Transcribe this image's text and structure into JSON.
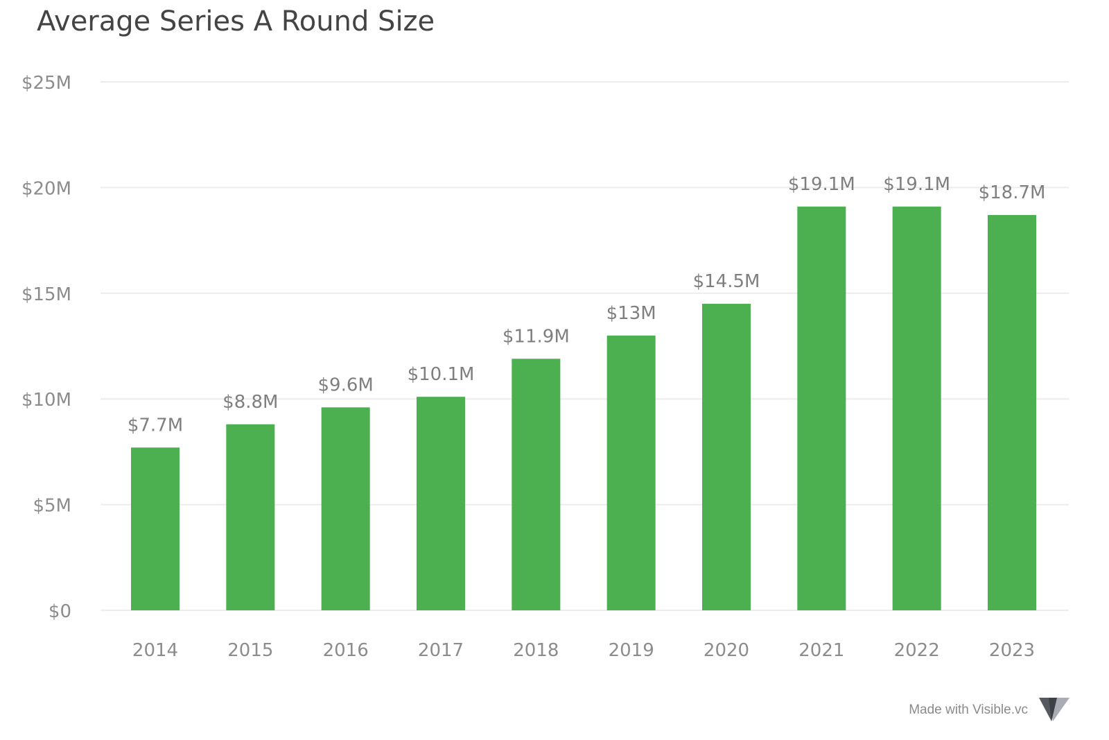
{
  "title": "Average Series A Round Size",
  "footer": {
    "text": "Made with Visible.vc",
    "logo_icon": "visible-logo-icon"
  },
  "colors": {
    "bar": "#4caf50",
    "gridline": "#ececec",
    "tick_text": "#8c8c8c",
    "data_label_text": "#7f7f7f",
    "title_text": "#444444"
  },
  "chart_data": {
    "type": "bar",
    "title": "Average Series A Round Size",
    "xlabel": "",
    "ylabel": "",
    "categories": [
      "2014",
      "2015",
      "2016",
      "2017",
      "2018",
      "2019",
      "2020",
      "2021",
      "2022",
      "2023"
    ],
    "values": [
      7.7,
      8.8,
      9.6,
      10.1,
      11.9,
      13.0,
      14.5,
      19.1,
      19.1,
      18.7
    ],
    "value_labels": [
      "$7.7M",
      "$8.8M",
      "$9.6M",
      "$10.1M",
      "$11.9M",
      "$13M",
      "$14.5M",
      "$19.1M",
      "$19.1M",
      "$18.7M"
    ],
    "unit": "$M",
    "ylim": [
      0,
      25
    ],
    "yticks": [
      0,
      5,
      10,
      15,
      20,
      25
    ],
    "ytick_labels": [
      "$0",
      "$5M",
      "$10M",
      "$15M",
      "$20M",
      "$25M"
    ],
    "grid": true,
    "legend": "none"
  }
}
